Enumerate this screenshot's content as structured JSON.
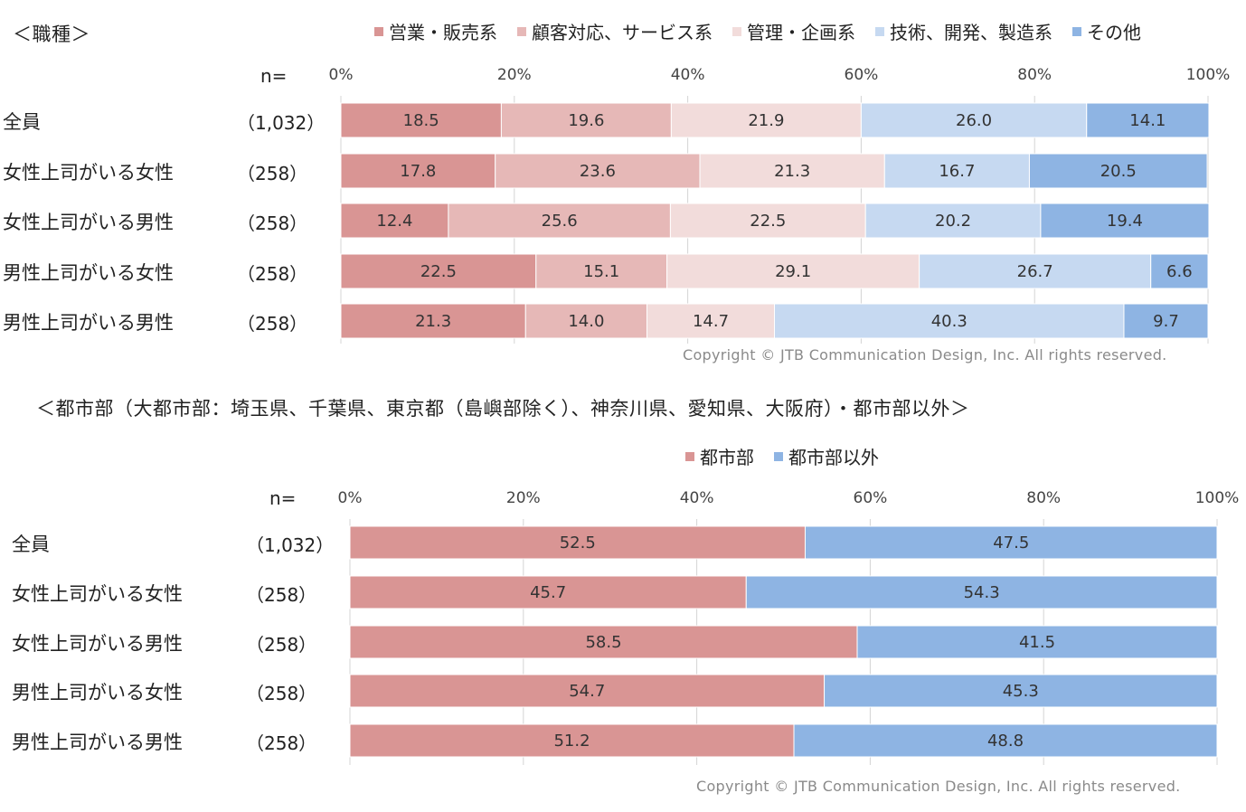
{
  "chart_data": [
    {
      "type": "bar",
      "stacked": true,
      "orientation": "horizontal",
      "title": "＜職種＞",
      "n_header": "n=",
      "xlim": [
        0,
        100
      ],
      "ticks": [
        "0%",
        "20%",
        "40%",
        "60%",
        "80%",
        "100%"
      ],
      "legend_position": "top",
      "categories": [
        "全員",
        "女性上司がいる女性",
        "女性上司がいる男性",
        "男性上司がいる女性",
        "男性上司がいる男性"
      ],
      "n_labels": [
        "（1,032）",
        "（258）",
        "（258）",
        "（258）",
        "（258）"
      ],
      "series": [
        {
          "name": "営業・販売系",
          "color": "#d99594",
          "values": [
            18.5,
            17.8,
            12.4,
            22.5,
            21.3
          ]
        },
        {
          "name": "顧客対応、サービス系",
          "color": "#e6b8b7",
          "values": [
            19.6,
            23.6,
            25.6,
            15.1,
            14.0
          ]
        },
        {
          "name": "管理・企画系",
          "color": "#f2dcdb",
          "values": [
            21.9,
            21.3,
            22.5,
            29.1,
            14.7
          ]
        },
        {
          "name": "技術、開発、製造系",
          "color": "#c6d9f1",
          "values": [
            26.0,
            16.7,
            20.2,
            26.7,
            40.3
          ]
        },
        {
          "name": "その他",
          "color": "#8eb4e3",
          "values": [
            14.1,
            20.5,
            19.4,
            6.6,
            9.7
          ]
        }
      ],
      "copyright": "Copyright © JTB Communication Design, Inc. All rights reserved."
    },
    {
      "type": "bar",
      "stacked": true,
      "orientation": "horizontal",
      "title": "＜都市部（大都市部：埼玉県、千葉県、東京都（島嶼部除く）、神奈川県、愛知県、大阪府）・都市部以外＞",
      "n_header": "n=",
      "xlim": [
        0,
        100
      ],
      "ticks": [
        "0%",
        "20%",
        "40%",
        "60%",
        "80%",
        "100%"
      ],
      "legend_position": "top",
      "categories": [
        "全員",
        "女性上司がいる女性",
        "女性上司がいる男性",
        "男性上司がいる女性",
        "男性上司がいる男性"
      ],
      "n_labels": [
        "（1,032）",
        "（258）",
        "（258）",
        "（258）",
        "（258）"
      ],
      "series": [
        {
          "name": "都市部",
          "color": "#d99594",
          "values": [
            52.5,
            45.7,
            58.5,
            54.7,
            51.2
          ]
        },
        {
          "name": "都市部以外",
          "color": "#8eb4e3",
          "values": [
            47.5,
            54.3,
            41.5,
            45.3,
            48.8
          ]
        }
      ],
      "copyright": "Copyright © JTB Communication Design, Inc. All rights reserved."
    }
  ]
}
